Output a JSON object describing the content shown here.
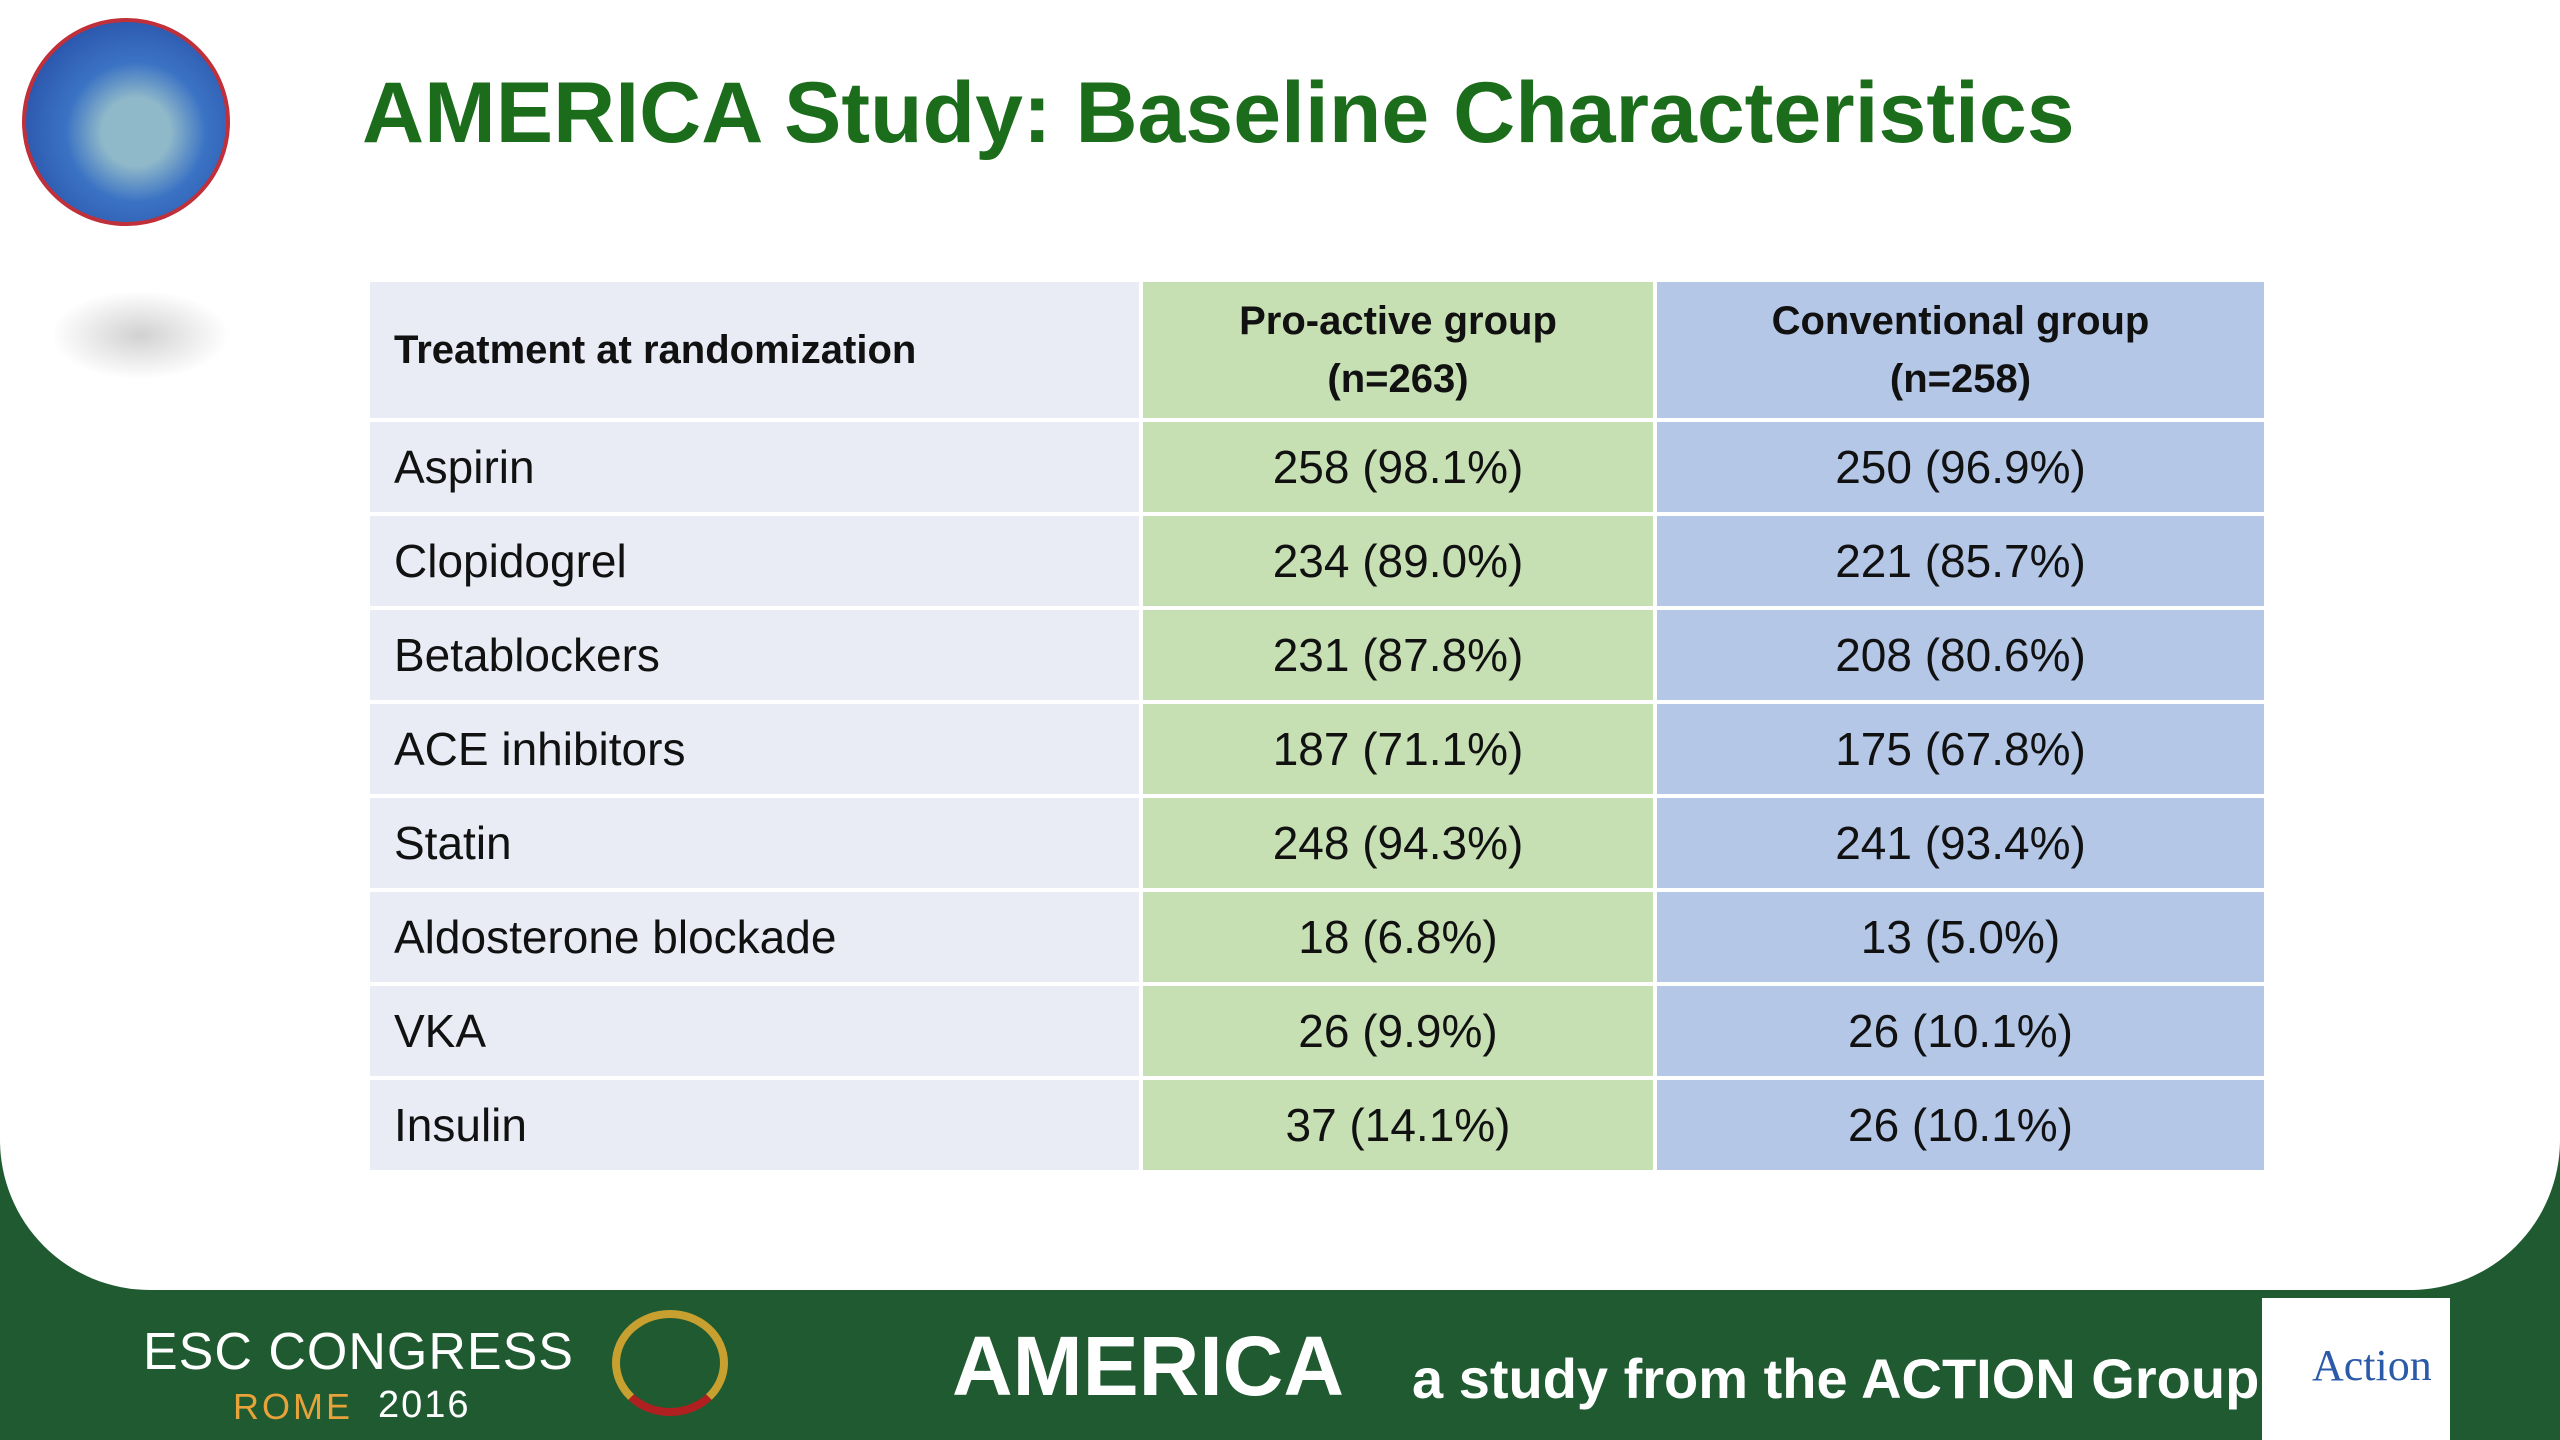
{
  "header": {
    "title": "AMERICA Study: Baseline Characteristics"
  },
  "table": {
    "columns": [
      {
        "label": "Treatment at randomization"
      },
      {
        "label": "Pro-active group",
        "n": "(n=263)"
      },
      {
        "label": "Conventional group",
        "n": "(n=258)"
      }
    ],
    "rows": [
      [
        "Aspirin",
        "258 (98.1%)",
        "250 (96.9%)"
      ],
      [
        "Clopidogrel",
        "234 (89.0%)",
        "221 (85.7%)"
      ],
      [
        "Betablockers",
        "231 (87.8%)",
        "208 (80.6%)"
      ],
      [
        "ACE inhibitors",
        "187 (71.1%)",
        "175 (67.8%)"
      ],
      [
        "Statin",
        "248 (94.3%)",
        "241 (93.4%)"
      ],
      [
        "Aldosterone blockade",
        "18 (6.8%)",
        "13 (5.0%)"
      ],
      [
        "VKA",
        "26 (9.9%)",
        "26 (10.1%)"
      ],
      [
        "Insulin",
        "37 (14.1%)",
        "26 (10.1%)"
      ]
    ]
  },
  "footer": {
    "congress": "ESC CONGRESS",
    "city": "ROME",
    "year": "2016",
    "study": "AMERICA",
    "tagline": "a study from the ACTION Group",
    "logo": "Action"
  }
}
